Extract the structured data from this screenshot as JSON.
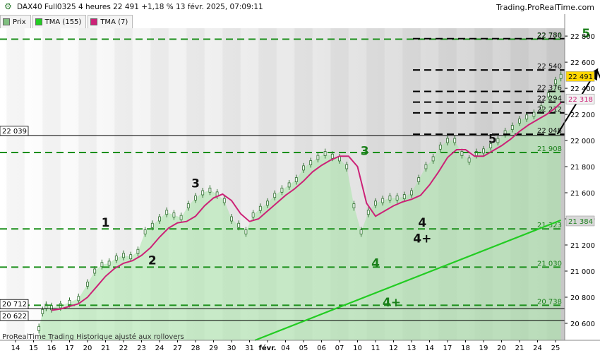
{
  "header": {
    "title": "DAX40 Full0325 4 heures 22 491 +1,18 % 13 févr. 2025, 07:09:11",
    "brand": "Trading.ProRealTime.com",
    "icon": "settings-gear-icon"
  },
  "legend": [
    {
      "label": "Prix",
      "color": "#7fbf7f"
    },
    {
      "label": "TMA (155)",
      "color": "#22cc22"
    },
    {
      "label": "TMA (7)",
      "color": "#cc2277"
    }
  ],
  "footer_note": "ProRealTime Trading  Historique ajusté aux rollovers",
  "chart_data": {
    "type": "line",
    "title": "DAX40 Full0325 4 heures",
    "x_ticks": [
      "14",
      "15",
      "16",
      "17",
      "20",
      "21",
      "22",
      "23",
      "24",
      "27",
      "28",
      "29",
      "30",
      "31",
      "févr.",
      "04",
      "05",
      "06",
      "07",
      "10",
      "11",
      "12",
      "13",
      "14",
      "17",
      "18",
      "19",
      "20",
      "21",
      "24",
      "25"
    ],
    "x_tick_bold": "févr.",
    "ylim": [
      20470,
      22860
    ],
    "y_ticks": [
      20600,
      20800,
      21000,
      21200,
      21400,
      21600,
      21800,
      22000,
      22200,
      22400,
      22600,
      22800
    ],
    "y_tick_labels": [
      "20 600",
      "20 800",
      "21 000",
      "21 200",
      "21 400",
      "21 600",
      "21 800",
      "22 000",
      "22 200",
      "22 400",
      "22 600",
      "22 800"
    ],
    "price_series": {
      "name": "Prix",
      "x": [
        15.3,
        15.5,
        15.7,
        16.0,
        16.5,
        17.0,
        17.5,
        18.0,
        18.4,
        18.8,
        19.2,
        19.6,
        20.0,
        20.4,
        20.8,
        21.2,
        21.6,
        22.0,
        22.4,
        22.8,
        23.2,
        23.6,
        24.0,
        24.4,
        24.8,
        25.2,
        25.6,
        26.0,
        26.4,
        26.8,
        27.2,
        27.6,
        28.0,
        28.4,
        28.8,
        29.2,
        29.6,
        30.0,
        30.4,
        30.8,
        31.2,
        31.6,
        32.0,
        32.4,
        32.8,
        33.2,
        33.6,
        34.0,
        34.4,
        34.8,
        35.2,
        35.6,
        36.0,
        36.4,
        36.8,
        37.2,
        37.6,
        38.0,
        38.4,
        38.8,
        39.2,
        39.6,
        40.0,
        40.4,
        40.8,
        41.2,
        41.6,
        42.0,
        42.4,
        42.8,
        43.2,
        43.6,
        44.0,
        44.3
      ],
      "y": [
        20560,
        20690,
        20730,
        20720,
        20735,
        20760,
        20790,
        20900,
        21000,
        21050,
        21060,
        21100,
        21120,
        21110,
        21150,
        21300,
        21350,
        21400,
        21450,
        21430,
        21410,
        21500,
        21560,
        21600,
        21620,
        21590,
        21540,
        21400,
        21350,
        21300,
        21430,
        21480,
        21520,
        21580,
        21620,
        21660,
        21700,
        21790,
        21830,
        21870,
        21900,
        21880,
        21860,
        21800,
        21500,
        21300,
        21450,
        21520,
        21540,
        21560,
        21560,
        21570,
        21600,
        21700,
        21800,
        21860,
        21950,
        22000,
        22000,
        21900,
        21850,
        21900,
        21920,
        21960,
        22000,
        22060,
        22100,
        22150,
        22180,
        22200,
        22250,
        22350,
        22450,
        22491
      ]
    },
    "tma155": {
      "name": "TMA (155)",
      "x": [
        27.3,
        44.3
      ],
      "y": [
        20470,
        21390
      ]
    },
    "tma7": {
      "name": "TMA (7)",
      "x": [
        16.0,
        16.5,
        17.0,
        17.5,
        18.0,
        18.5,
        19.0,
        19.5,
        20.0,
        20.5,
        21.0,
        21.5,
        22.0,
        22.5,
        23.0,
        23.5,
        24.0,
        24.5,
        25.0,
        25.5,
        26.0,
        26.5,
        27.0,
        27.5,
        28.0,
        28.5,
        29.0,
        29.5,
        30.0,
        30.5,
        31.0,
        31.5,
        32.0,
        32.5,
        33.0,
        33.5,
        34.0,
        34.5,
        35.0,
        35.5,
        36.0,
        36.5,
        37.0,
        37.5,
        38.0,
        38.5,
        39.0,
        39.5,
        40.0,
        40.5,
        41.0,
        41.5,
        42.0,
        42.5,
        43.0,
        43.5,
        44.0,
        44.3
      ],
      "y": [
        20700,
        20710,
        20730,
        20750,
        20800,
        20880,
        20960,
        21020,
        21060,
        21080,
        21120,
        21180,
        21260,
        21330,
        21370,
        21380,
        21420,
        21500,
        21560,
        21590,
        21540,
        21440,
        21380,
        21400,
        21460,
        21520,
        21580,
        21630,
        21690,
        21760,
        21810,
        21850,
        21880,
        21880,
        21800,
        21520,
        21420,
        21460,
        21500,
        21530,
        21550,
        21580,
        21660,
        21760,
        21870,
        21930,
        21930,
        21880,
        21880,
        21920,
        21960,
        22010,
        22070,
        22120,
        22160,
        22200,
        22250,
        22290
      ]
    },
    "horizontal_levels": [
      {
        "y": 22776,
        "label": "22 776",
        "style": "green-dashed",
        "label_color": "#1a7f1a"
      },
      {
        "y": 22780,
        "label": "22 780",
        "style": "black-dashed",
        "label_color": "#111111"
      },
      {
        "y": 22540,
        "label": "22 540",
        "style": "black-dashed",
        "label_color": "#111111"
      },
      {
        "y": 22376,
        "label": "22 376",
        "style": "black-dashed",
        "label_color": "#111111"
      },
      {
        "y": 22294,
        "label": "22 294",
        "style": "black-dashed",
        "label_color": "#111111"
      },
      {
        "y": 22212,
        "label": "22 212",
        "style": "black-dashed",
        "label_color": "#111111"
      },
      {
        "y": 22048,
        "label": "22 048",
        "style": "black-dashed",
        "label_color": "#111111"
      },
      {
        "y": 21908,
        "label": "21 908",
        "style": "green-dashed",
        "label_color": "#1a7f1a"
      },
      {
        "y": 21323,
        "label": "21 323",
        "style": "green-dashed",
        "label_color": "#1a7f1a"
      },
      {
        "y": 21030,
        "label": "21 030",
        "style": "green-dashed",
        "label_color": "#1a7f1a"
      },
      {
        "y": 20738,
        "label": "20 738",
        "style": "green-dashed",
        "label_color": "#1a7f1a"
      }
    ],
    "solid_levels": [
      {
        "y": 22039,
        "label": "22 039"
      },
      {
        "y": 20712,
        "label": "20 712"
      },
      {
        "y": 20622,
        "label": "20 622"
      }
    ],
    "price_badges": [
      {
        "y": 22491,
        "label": "22 491",
        "bg": "#ffd700",
        "color": "#111111"
      },
      {
        "y": 22318,
        "label": "22 318",
        "bg": "#f2f2f2",
        "color": "#cc2277"
      },
      {
        "y": 21384,
        "label": "21 384",
        "bg": "#d8d8d8",
        "color": "#1a7f1a"
      }
    ],
    "wave_labels": [
      {
        "text": "1",
        "x": 19.0,
        "y": 21340,
        "color": "#111111"
      },
      {
        "text": "2",
        "x": 21.6,
        "y": 21050,
        "color": "#111111"
      },
      {
        "text": "3",
        "x": 24.0,
        "y": 21640,
        "color": "#111111"
      },
      {
        "text": "4",
        "x": 36.6,
        "y": 21340,
        "color": "#111111"
      },
      {
        "text": "4+",
        "x": 36.6,
        "y": 21220,
        "color": "#111111"
      },
      {
        "text": "5",
        "x": 40.5,
        "y": 21980,
        "color": "#111111"
      },
      {
        "text": "3",
        "x": 33.4,
        "y": 21890,
        "color": "#1a7f1a"
      },
      {
        "text": "4",
        "x": 34.0,
        "y": 21030,
        "color": "#1a7f1a"
      },
      {
        "text": "4+",
        "x": 34.9,
        "y": 20730,
        "color": "#1a7f1a"
      },
      {
        "text": "5",
        "x": 45.7,
        "y": 22790,
        "color": "#1a7f1a"
      }
    ],
    "projection_arrows": [
      {
        "from": [
          44.1,
          22048
        ],
        "to": [
          46.3,
          22540
        ]
      },
      {
        "from": [
          46.3,
          22540
        ],
        "to": [
          47.1,
          22290
        ]
      },
      {
        "from": [
          47.1,
          22290
        ],
        "to": [
          48.8,
          22780
        ]
      }
    ]
  }
}
